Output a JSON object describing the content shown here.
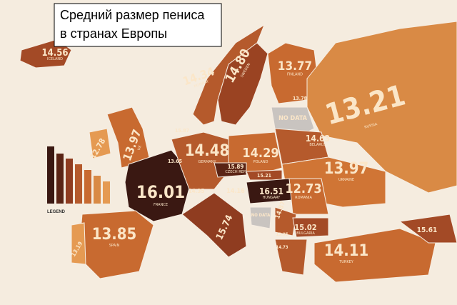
{
  "title": [
    "Средний размер пениса",
    "в странах Европы"
  ],
  "legend": "LEGEND",
  "no_data": [
    "NO DATA",
    "NO DATA"
  ],
  "countries": [
    {
      "value": "14.56",
      "name": "ICELAND"
    },
    {
      "value": "14.34",
      "name": "NORWAY"
    },
    {
      "value": "14.80",
      "name": "SWEDEN"
    },
    {
      "value": "13.77",
      "name": "FINLAND"
    },
    {
      "value": "13.78"
    },
    {
      "value": "13.21",
      "name": "RUSSIA"
    },
    {
      "value": "12.78"
    },
    {
      "value": "13.97",
      "name": "UK"
    },
    {
      "value": "15.87"
    },
    {
      "value": "13.65"
    },
    {
      "value": "14.48",
      "name": "GERMANY"
    },
    {
      "value": "14.29",
      "name": "POLAND"
    },
    {
      "value": "14.63",
      "name": "BELARUS"
    },
    {
      "value": "13.97",
      "name": "UKRAINE"
    },
    {
      "value": "15.89",
      "name": "CZECH REP."
    },
    {
      "value": "15.21"
    },
    {
      "value": "14.16"
    },
    {
      "value": "16.51",
      "name": "HUNGARY"
    },
    {
      "value": "14.35"
    },
    {
      "value": "16.01",
      "name": "FRANCE"
    },
    {
      "value": "12.73",
      "name": "ROMANIA"
    },
    {
      "value": "15.74"
    },
    {
      "value": "13.85",
      "name": "SPAIN"
    },
    {
      "value": "13.19"
    },
    {
      "value": "14.87"
    },
    {
      "value": "15.02",
      "name": "BULGARIA"
    },
    {
      "value": "13.95"
    },
    {
      "value": "14.73"
    },
    {
      "value": "14.11",
      "name": "TURKEY"
    },
    {
      "value": "15.61"
    }
  ]
}
